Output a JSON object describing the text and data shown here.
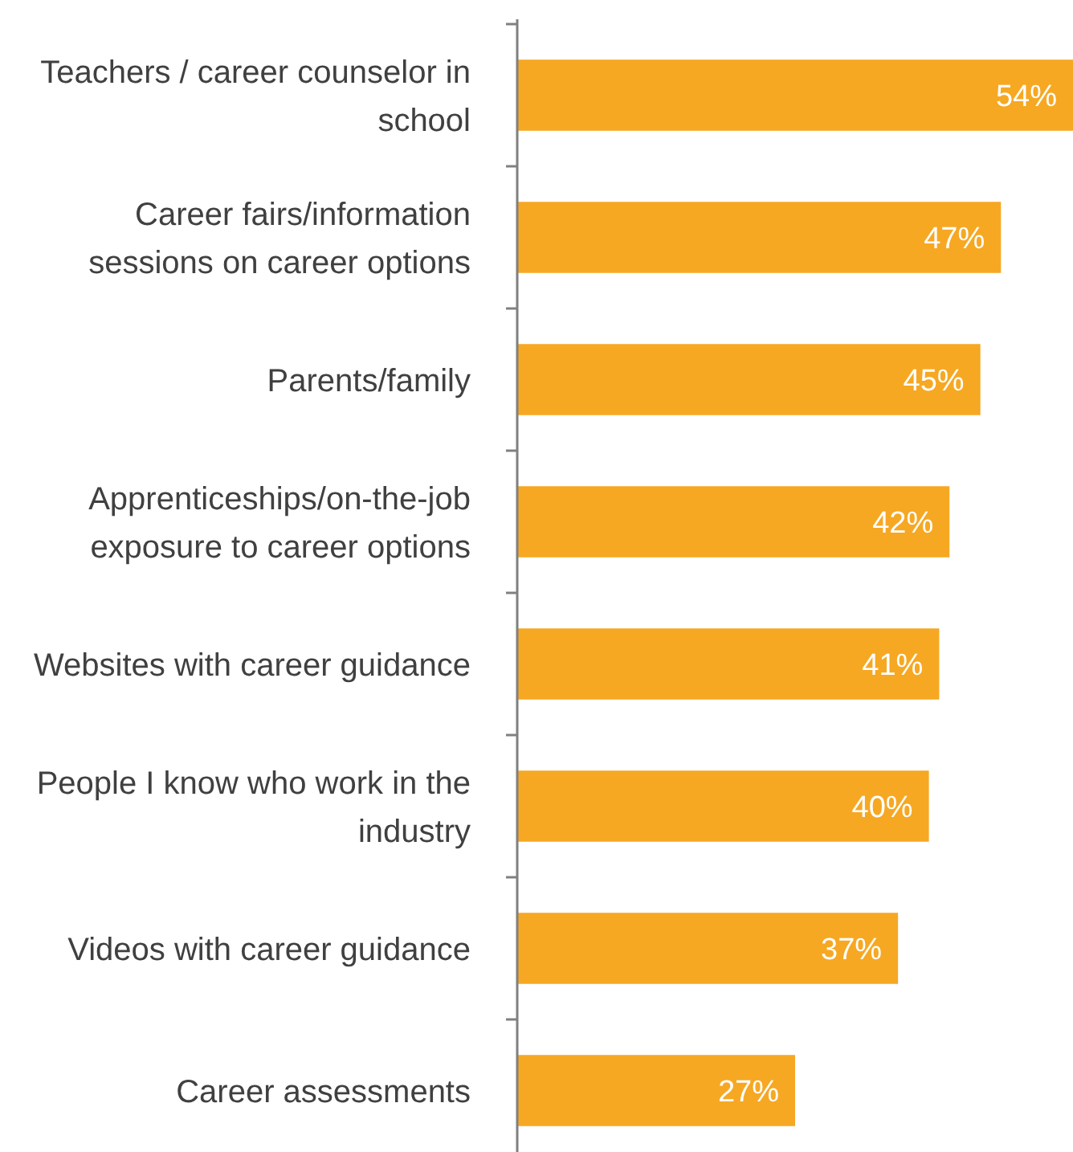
{
  "chart_data": {
    "type": "bar",
    "orientation": "horizontal",
    "categories": [
      "Teachers / career counselor in school",
      "Career fairs/information sessions on career options",
      "Parents/family",
      "Apprenticeships/on-the-job exposure to career options",
      "Websites with career guidance",
      "People I know who work in the industry",
      "Videos with career guidance",
      "Career assessments"
    ],
    "values": [
      54,
      47,
      45,
      42,
      41,
      40,
      37,
      27
    ],
    "value_labels": [
      "54%",
      "47%",
      "45%",
      "42%",
      "41%",
      "40%",
      "37%",
      "27%"
    ],
    "color": "#f6a823",
    "xlim": [
      0,
      54
    ]
  }
}
